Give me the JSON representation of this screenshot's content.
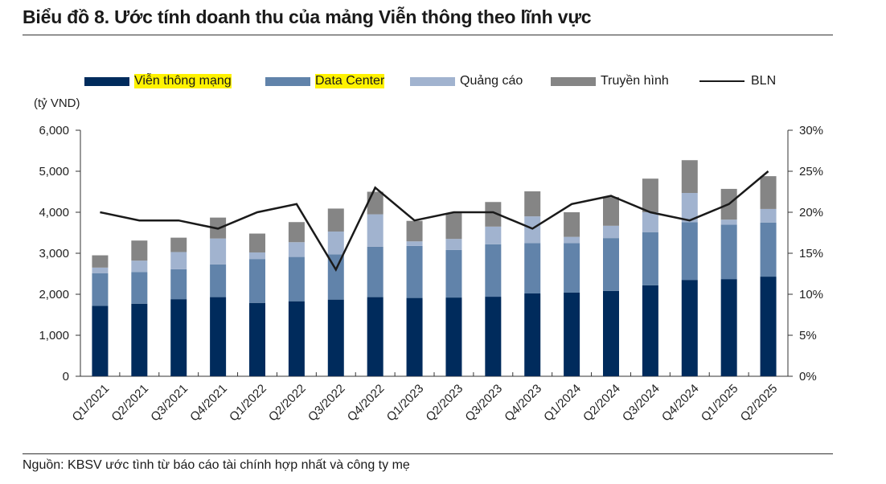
{
  "title": "Biểu đồ 8. Ước tính doanh thu của mảng Viễn thông theo lĩnh vực",
  "source": "Nguồn: KBSV ước tình từ báo cáo tài chính hợp nhất và công ty mẹ",
  "chart_data": {
    "type": "bar",
    "stacked": true,
    "ylabel": "(tỷ VND)",
    "ylim": [
      0,
      6000
    ],
    "y_ticks": [
      "0",
      "1,000",
      "2,000",
      "3,000",
      "4,000",
      "5,000",
      "6,000"
    ],
    "y2lim": [
      0,
      30
    ],
    "y2_ticks": [
      "0%",
      "5%",
      "10%",
      "15%",
      "20%",
      "25%",
      "30%"
    ],
    "categories": [
      "Q1/2021",
      "Q2/2021",
      "Q3/2021",
      "Q4/2021",
      "Q1/2022",
      "Q2/2022",
      "Q3/2022",
      "Q4/2022",
      "Q1/2023",
      "Q2/2023",
      "Q3/2023",
      "Q4/2023",
      "Q1/2024",
      "Q2/2024",
      "Q3/2024",
      "Q4/2024",
      "Q1/2025",
      "Q2/2025"
    ],
    "series": [
      {
        "name": "Viễn thông mạng",
        "color": "#002b5c",
        "highlight": true,
        "values": [
          1720,
          1770,
          1880,
          1930,
          1790,
          1830,
          1870,
          1930,
          1910,
          1920,
          1940,
          2020,
          2040,
          2080,
          2220,
          2350,
          2370,
          2430
        ]
      },
      {
        "name": "Data Center",
        "color": "#6183aa",
        "highlight": true,
        "values": [
          790,
          770,
          730,
          800,
          1070,
          1080,
          1100,
          1230,
          1270,
          1160,
          1280,
          1230,
          1210,
          1290,
          1290,
          1410,
          1330,
          1320
        ]
      },
      {
        "name": "Quảng cáo",
        "color": "#a1b3cf",
        "highlight": false,
        "values": [
          140,
          280,
          420,
          630,
          160,
          360,
          560,
          790,
          110,
          270,
          430,
          650,
          150,
          300,
          490,
          710,
          120,
          330
        ]
      },
      {
        "name": "Truyền hình",
        "color": "#858585",
        "highlight": false,
        "values": [
          300,
          490,
          350,
          510,
          460,
          490,
          560,
          550,
          500,
          630,
          600,
          610,
          600,
          700,
          820,
          800,
          750,
          800
        ]
      }
    ],
    "line": {
      "name": "BLN",
      "color": "#1a1a1a",
      "axis": "right",
      "values": [
        20,
        19,
        19,
        18,
        20,
        21,
        13,
        23,
        19,
        20,
        20,
        18,
        21,
        22,
        20,
        19,
        21,
        25
      ]
    },
    "legend": "top"
  }
}
